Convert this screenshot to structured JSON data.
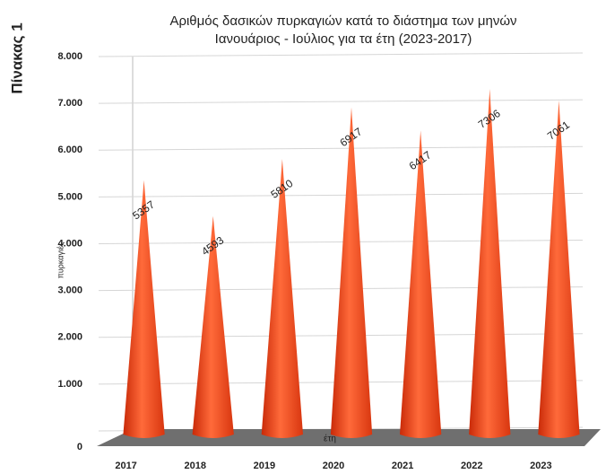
{
  "side_label": "Πίνακας 1",
  "chart_data": {
    "type": "cone",
    "title": [
      "Αριθμός δασικών πυρκαγιών κατά το διάστημα των μηνών",
      "Ιανουάριος - Ιούλιος για τα έτη (2023-2017)"
    ],
    "ylabel": "πυρκαγιές",
    "xlabel": "έτη",
    "categories": [
      "2017",
      "2018",
      "2019",
      "2020",
      "2021",
      "2022",
      "2023"
    ],
    "values": [
      5357,
      4593,
      5810,
      6917,
      6417,
      7306,
      7061
    ],
    "color": "#f2461b",
    "ylim": [
      0,
      8000
    ],
    "yticks": [
      0,
      {
        "value": 1000,
        "label": "1.000"
      },
      {
        "value": 2000,
        "label": "2.000"
      },
      {
        "value": 3000,
        "label": "3.000"
      },
      {
        "value": 4000,
        "label": "4.000"
      },
      {
        "value": 5000,
        "label": "5.000"
      },
      {
        "value": 6000,
        "label": "6.000"
      },
      {
        "value": 7000,
        "label": "7.000"
      },
      {
        "value": 8000,
        "label": "8.000"
      }
    ],
    "grid": true
  }
}
